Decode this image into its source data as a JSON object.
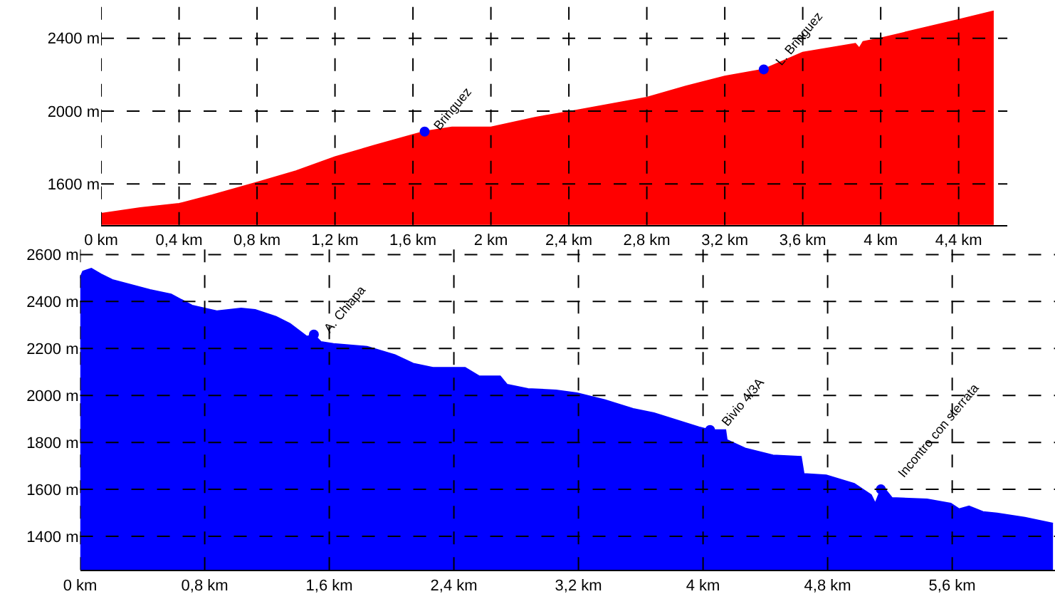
{
  "chart_data": [
    {
      "type": "area",
      "x": [
        0,
        0.2,
        0.4,
        0.57,
        0.8,
        1.0,
        1.2,
        1.4,
        1.6,
        1.66,
        1.8,
        2.0,
        2.23,
        2.4,
        2.56,
        2.8,
        3.0,
        3.2,
        3.4,
        3.6,
        3.87,
        3.89,
        3.91,
        4.0,
        4.4,
        4.58
      ],
      "series": [
        {
          "color": "#ff0000",
          "values": [
            1437,
            1468,
            1491,
            1538,
            1608,
            1670,
            1748,
            1810,
            1870,
            1887,
            1911,
            1911,
            1965,
            1996,
            2027,
            2074,
            2136,
            2190,
            2229,
            2322,
            2370,
            2345,
            2380,
            2400,
            2501,
            2548
          ]
        },
        {
          "type": "scatter",
          "color": "#0000ff",
          "marker": "circle",
          "x": [
            1.66,
            3.4
          ],
          "values": [
            1887,
            2229
          ]
        }
      ],
      "xlim": [
        0,
        4.65
      ],
      "ylim": [
        1375,
        2602
      ],
      "xticks": [
        {
          "value": 0,
          "label": "0 km"
        },
        {
          "value": 0.4,
          "label": "0,4 km"
        },
        {
          "value": 0.8,
          "label": "0,8 km"
        },
        {
          "value": 1.2,
          "label": "1,2 km"
        },
        {
          "value": 1.6,
          "label": "1,6 km"
        },
        {
          "value": 2,
          "label": "2 km"
        },
        {
          "value": 2.4,
          "label": "2,4 km"
        },
        {
          "value": 2.8,
          "label": "2,8 km"
        },
        {
          "value": 3.2,
          "label": "3,2 km"
        },
        {
          "value": 3.6,
          "label": "3,6 km"
        },
        {
          "value": 4,
          "label": "4 km"
        },
        {
          "value": 4.4,
          "label": "4,4 km"
        }
      ],
      "yticks": [
        {
          "value": 1600,
          "label": "1600 m"
        },
        {
          "value": 2000,
          "label": "2000 m"
        },
        {
          "value": 2400,
          "label": "2400 m"
        }
      ],
      "grid": true,
      "annotations": [
        {
          "text": "Bringuez",
          "x": 1.66,
          "y": 1887
        },
        {
          "text": "L. Bringuez",
          "x": 3.4,
          "y": 2229
        }
      ]
    },
    {
      "type": "area",
      "x": [
        0,
        0.018,
        0.072,
        0.135,
        0.207,
        0.315,
        0.449,
        0.584,
        0.719,
        0.8,
        0.881,
        1.034,
        1.124,
        1.258,
        1.348,
        1.42,
        1.456,
        1.501,
        1.546,
        1.627,
        1.843,
        2.022,
        2.139,
        2.265,
        2.472,
        2.562,
        2.697,
        2.742,
        2.876,
        3.056,
        3.191,
        3.371,
        3.551,
        3.685,
        3.973,
        4.045,
        4.144,
        4.153,
        4.27,
        4.449,
        4.629,
        4.647,
        4.791,
        4.971,
        5.079,
        5.106,
        5.142,
        5.169,
        5.213,
        5.438,
        5.591,
        5.645,
        5.708,
        5.798,
        5.888,
        6.067,
        6.247
      ],
      "series": [
        {
          "color": "#0000ff",
          "values": [
            2500,
            2528,
            2540,
            2516,
            2492,
            2473,
            2450,
            2431,
            2383,
            2371,
            2359,
            2371,
            2365,
            2335,
            2305,
            2269,
            2251,
            2259,
            2228,
            2220,
            2208,
            2172,
            2136,
            2118,
            2118,
            2082,
            2082,
            2046,
            2028,
            2022,
            2010,
            1980,
            1943,
            1925,
            1865,
            1853,
            1853,
            1811,
            1775,
            1745,
            1739,
            1666,
            1660,
            1624,
            1576,
            1540,
            1600,
            1600,
            1564,
            1558,
            1540,
            1516,
            1528,
            1504,
            1498,
            1480,
            1455
          ]
        },
        {
          "type": "scatter",
          "color": "#0000ff",
          "marker": "circle",
          "x": [
            1.501,
            4.045,
            5.142
          ],
          "values": [
            2259,
            1853,
            1600
          ]
        }
      ],
      "xlim": [
        0,
        6.26
      ],
      "ylim": [
        1257,
        2624
      ],
      "xticks": [
        {
          "value": 0,
          "label": "0 km"
        },
        {
          "value": 0.8,
          "label": "0,8 km"
        },
        {
          "value": 1.6,
          "label": "1,6 km"
        },
        {
          "value": 2.4,
          "label": "2,4 km"
        },
        {
          "value": 3.2,
          "label": "3,2 km"
        },
        {
          "value": 4,
          "label": "4 km"
        },
        {
          "value": 4.8,
          "label": "4,8 km"
        },
        {
          "value": 5.6,
          "label": "5,6 km"
        }
      ],
      "yticks": [
        {
          "value": 1400,
          "label": "1400 m"
        },
        {
          "value": 1600,
          "label": "1600 m"
        },
        {
          "value": 1800,
          "label": "1800 m"
        },
        {
          "value": 2000,
          "label": "2000 m"
        },
        {
          "value": 2200,
          "label": "2200 m"
        },
        {
          "value": 2400,
          "label": "2400 m"
        },
        {
          "value": 2600,
          "label": "2600 m"
        }
      ],
      "grid": true,
      "annotations": [
        {
          "text": "A. Chiapa",
          "x": 1.501,
          "y": 2259
        },
        {
          "text": "Bivio 4/3A",
          "x": 4.045,
          "y": 1853
        },
        {
          "text": "Incontro con sterrata",
          "x": 5.142,
          "y": 1600
        }
      ]
    }
  ]
}
